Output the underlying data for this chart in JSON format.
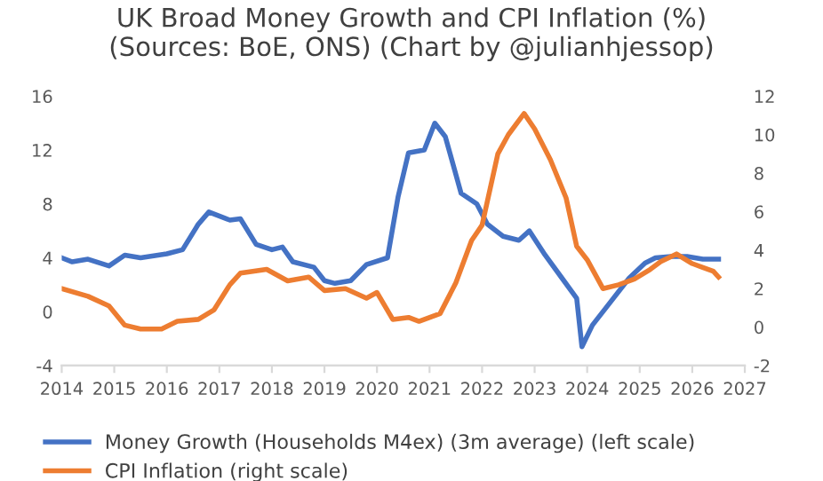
{
  "chart_data": {
    "type": "line",
    "title": "UK Broad Money Growth and CPI Inflation (%)\n(Sources: BoE, ONS) (Chart by @julianhjessop)",
    "xlim": [
      2014,
      2027
    ],
    "xticks": [
      2014,
      2015,
      2016,
      2017,
      2018,
      2019,
      2020,
      2021,
      2022,
      2023,
      2024,
      2025,
      2026,
      2027
    ],
    "ylim": [
      -4,
      16
    ],
    "yticks": [
      -4,
      0,
      4,
      8,
      12,
      16
    ],
    "y2lim": [
      -2,
      12
    ],
    "y2ticks": [
      -2,
      0,
      2,
      4,
      6,
      8,
      10,
      12
    ],
    "grid": false,
    "legend": "bottom",
    "marker": "none",
    "line_style": "solid",
    "series": [
      {
        "name": "Money Growth (Households M4ex) (3m average) (left scale)",
        "color": "#4472c4",
        "x": [
          2014,
          2014.2,
          2014.5,
          2014.9,
          2015.2,
          2015.5,
          2016,
          2016.3,
          2016.6,
          2016.8,
          2017.2,
          2017.4,
          2017.7,
          2018,
          2018.2,
          2018.4,
          2018.8,
          2019,
          2019.2,
          2019.5,
          2019.8,
          2020.2,
          2020.4,
          2020.6,
          2020.9,
          2021.1,
          2021.3,
          2021.6,
          2021.9,
          2022.1,
          2022.4,
          2022.7,
          2022.9,
          2023.2,
          2023.5,
          2023.8,
          2023.9,
          2024.1,
          2024.4,
          2024.8,
          2025.1,
          2025.3,
          2025.6,
          2025.9,
          2026.2,
          2026.5
        ],
        "values": [
          4.0,
          3.7,
          3.9,
          3.4,
          4.2,
          4.0,
          4.3,
          4.6,
          6.5,
          7.4,
          6.8,
          6.9,
          5.0,
          4.6,
          4.8,
          3.7,
          3.3,
          2.3,
          2.1,
          2.3,
          3.5,
          4.0,
          8.5,
          11.8,
          12.0,
          14.0,
          13.0,
          8.8,
          8.0,
          6.5,
          5.6,
          5.3,
          6.0,
          4.2,
          2.6,
          1.0,
          -2.6,
          -1.0,
          0.5,
          2.5,
          3.6,
          4.0,
          4.1,
          4.1,
          3.9,
          3.9
        ]
      },
      {
        "name": "CPI Inflation (right scale)",
        "color": "#ed7d31",
        "axis": "y2",
        "x": [
          2014,
          2014.5,
          2014.9,
          2015.2,
          2015.5,
          2015.9,
          2016.2,
          2016.6,
          2016.9,
          2017.2,
          2017.4,
          2017.9,
          2018.3,
          2018.7,
          2019,
          2019.4,
          2019.8,
          2020.0,
          2020.3,
          2020.6,
          2020.8,
          2021.2,
          2021.5,
          2021.8,
          2022.0,
          2022.3,
          2022.5,
          2022.8,
          2023.0,
          2023.3,
          2023.6,
          2023.8,
          2024.0,
          2024.3,
          2024.6,
          2024.9,
          2025.2,
          2025.4,
          2025.7,
          2026.0,
          2026.2,
          2026.4,
          2026.5
        ],
        "values": [
          2.0,
          1.6,
          1.1,
          0.1,
          -0.1,
          -0.1,
          0.3,
          0.4,
          0.9,
          2.2,
          2.8,
          3.0,
          2.4,
          2.6,
          1.9,
          2.0,
          1.5,
          1.8,
          0.4,
          0.5,
          0.3,
          0.7,
          2.3,
          4.5,
          5.3,
          9.0,
          10.0,
          11.1,
          10.3,
          8.7,
          6.7,
          4.2,
          3.5,
          2.0,
          2.2,
          2.5,
          3.0,
          3.4,
          3.8,
          3.3,
          3.1,
          2.9,
          2.6
        ]
      }
    ]
  }
}
